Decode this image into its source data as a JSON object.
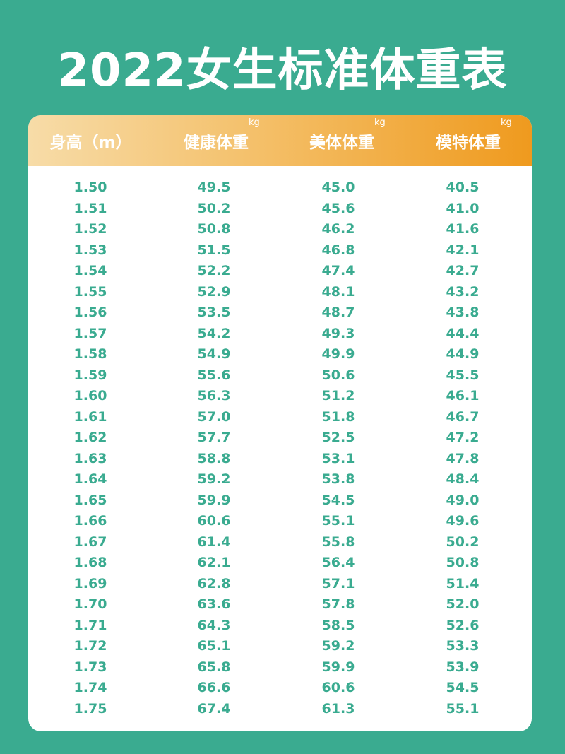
{
  "title": "2022女生标准体重表",
  "colors": {
    "background": "#3aab90",
    "text_accent": "#3aab90",
    "header_gradient_start": "#f7dca8",
    "header_gradient_end": "#ef9a1e",
    "card": "#ffffff"
  },
  "table": {
    "headers": [
      {
        "label": "身高（m）",
        "unit": ""
      },
      {
        "label": "健康体重",
        "unit": "kg"
      },
      {
        "label": "美体体重",
        "unit": "kg"
      },
      {
        "label": "模特体重",
        "unit": "kg"
      }
    ],
    "rows": [
      [
        "1.50",
        "49.5",
        "45.0",
        "40.5"
      ],
      [
        "1.51",
        "50.2",
        "45.6",
        "41.0"
      ],
      [
        "1.52",
        "50.8",
        "46.2",
        "41.6"
      ],
      [
        "1.53",
        "51.5",
        "46.8",
        "42.1"
      ],
      [
        "1.54",
        "52.2",
        "47.4",
        "42.7"
      ],
      [
        "1.55",
        "52.9",
        "48.1",
        "43.2"
      ],
      [
        "1.56",
        "53.5",
        "48.7",
        "43.8"
      ],
      [
        "1.57",
        "54.2",
        "49.3",
        "44.4"
      ],
      [
        "1.58",
        "54.9",
        "49.9",
        "44.9"
      ],
      [
        "1.59",
        "55.6",
        "50.6",
        "45.5"
      ],
      [
        "1.60",
        "56.3",
        "51.2",
        "46.1"
      ],
      [
        "1.61",
        "57.0",
        "51.8",
        "46.7"
      ],
      [
        "1.62",
        "57.7",
        "52.5",
        "47.2"
      ],
      [
        "1.63",
        "58.8",
        "53.1",
        "47.8"
      ],
      [
        "1.64",
        "59.2",
        "53.8",
        "48.4"
      ],
      [
        "1.65",
        "59.9",
        "54.5",
        "49.0"
      ],
      [
        "1.66",
        "60.6",
        "55.1",
        "49.6"
      ],
      [
        "1.67",
        "61.4",
        "55.8",
        "50.2"
      ],
      [
        "1.68",
        "62.1",
        "56.4",
        "50.8"
      ],
      [
        "1.69",
        "62.8",
        "57.1",
        "51.4"
      ],
      [
        "1.70",
        "63.6",
        "57.8",
        "52.0"
      ],
      [
        "1.71",
        "64.3",
        "58.5",
        "52.6"
      ],
      [
        "1.72",
        "65.1",
        "59.2",
        "53.3"
      ],
      [
        "1.73",
        "65.8",
        "59.9",
        "53.9"
      ],
      [
        "1.74",
        "66.6",
        "60.6",
        "54.5"
      ],
      [
        "1.75",
        "67.4",
        "61.3",
        "55.1"
      ]
    ]
  }
}
